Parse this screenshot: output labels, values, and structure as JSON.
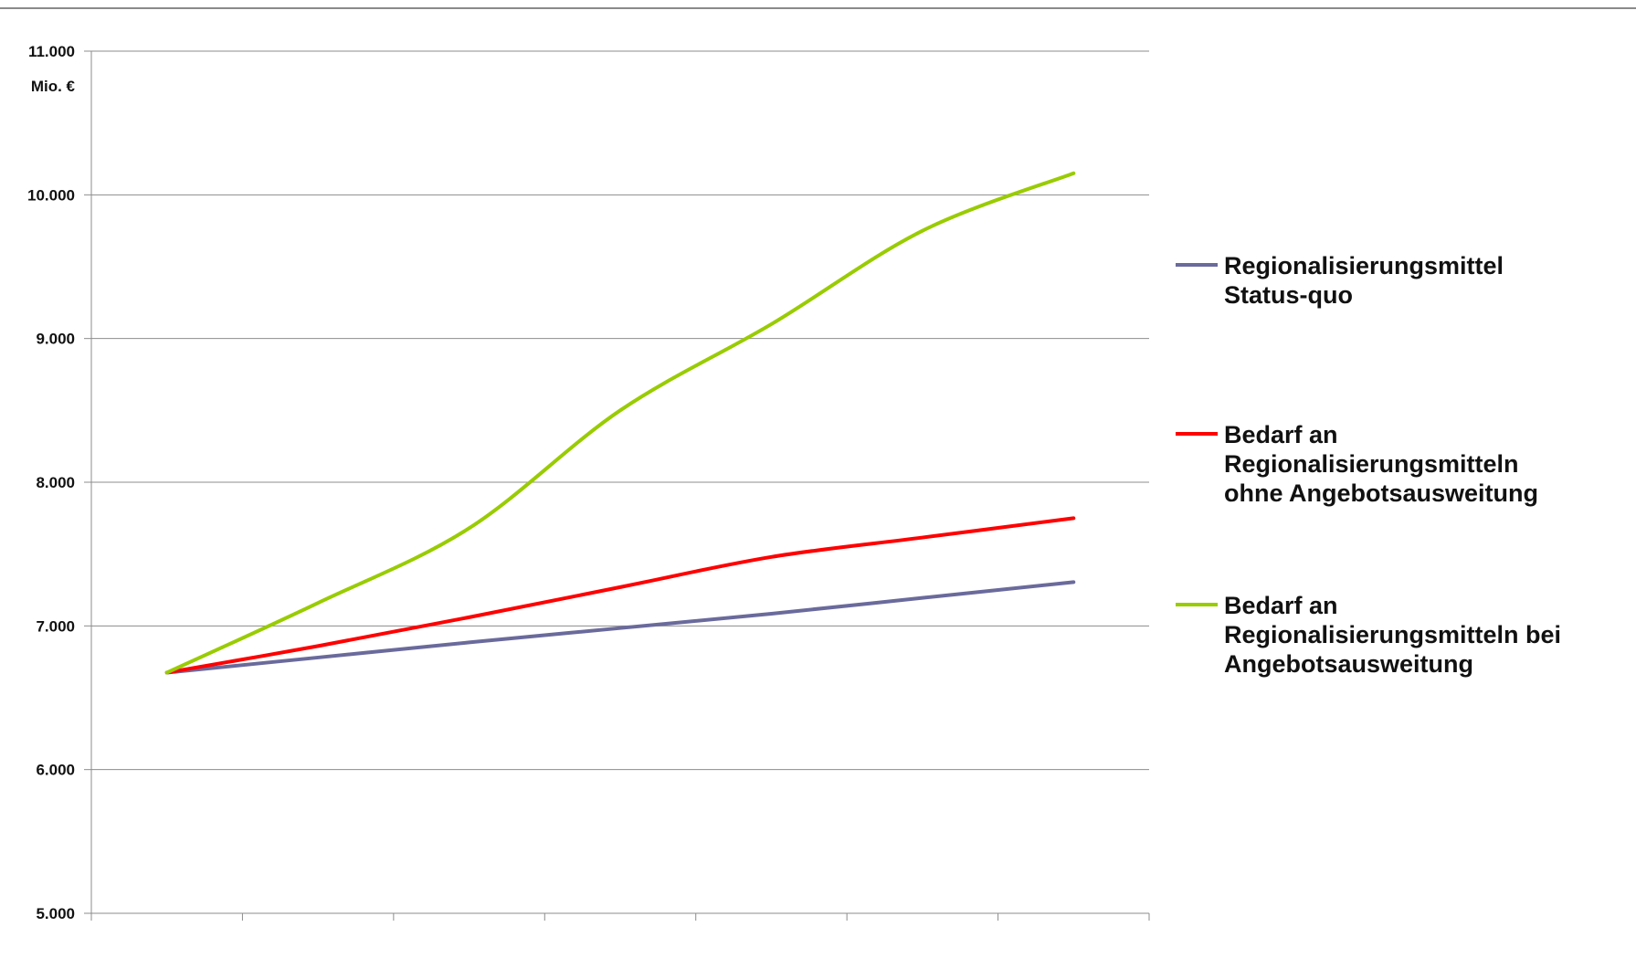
{
  "chart_data": {
    "type": "line",
    "title": "",
    "xlabel": "",
    "ylabel": "Mio. €",
    "ylim": [
      5000,
      11000
    ],
    "yticks": [
      5000,
      6000,
      7000,
      8000,
      9000,
      10000,
      11000
    ],
    "ytick_labels": [
      "5.000",
      "6.000",
      "7.000",
      "8.000",
      "9.000",
      "10.000",
      "11.000"
    ],
    "categories": [
      "",
      "",
      "",
      "",
      "",
      "",
      ""
    ],
    "grid": "horizontal",
    "legend_position": "right",
    "series": [
      {
        "name": "Regionalisierungsmittel Status-quo",
        "legend_lines": [
          "Regionalisierungsmittel",
          "Status-quo"
        ],
        "color": "#6a6a9c",
        "values": [
          6675,
          6780,
          6885,
          6985,
          7085,
          7195,
          7305
        ]
      },
      {
        "name": "Bedarf an Regionalisierungsmitteln ohne Angebotsausweitung",
        "legend_lines": [
          "Bedarf an",
          "Regionalisierungsmitteln",
          "ohne Angebotsausweitung"
        ],
        "color": "#ff0000",
        "values": [
          6675,
          6860,
          7060,
          7270,
          7480,
          7615,
          7750
        ]
      },
      {
        "name": "Bedarf an Regionalisierungsmitteln bei Angebotsausweitung",
        "legend_lines": [
          "Bedarf an",
          "Regionalisierungsmitteln bei",
          "Angebotsausweitung"
        ],
        "color": "#99cc00",
        "values": [
          6675,
          7160,
          7680,
          8500,
          9100,
          9750,
          10150
        ]
      }
    ]
  }
}
